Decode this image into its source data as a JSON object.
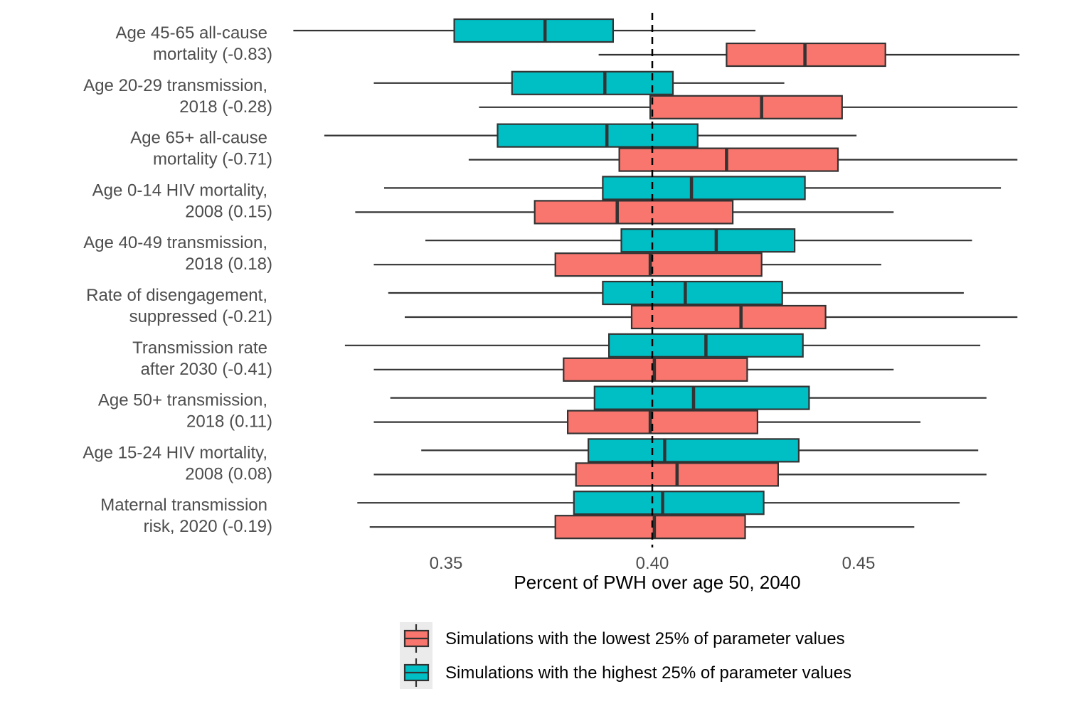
{
  "chart_data": {
    "type": "boxplot",
    "title": "",
    "xlabel": "Percent of PWH over age 50, 2040",
    "ylabel": "",
    "xlim": [
      0.3,
      0.5
    ],
    "xticks": [
      0.35,
      0.4,
      0.45
    ],
    "tick_labels": [
      "0.35",
      "0.40",
      "0.45"
    ],
    "reference_line": 0.4,
    "grid": false,
    "legend_position": "bottom",
    "series": [
      {
        "key": "low",
        "name": "Simulations with the lowest 25% of parameter values",
        "color": "#F8766D"
      },
      {
        "key": "high",
        "name": "Simulations with the highest 25% of parameter values",
        "color": "#00BFC4"
      }
    ],
    "categories": [
      {
        "label_lines": [
          "Age 45-65 all-cause",
          "mortality (-0.83)"
        ],
        "high": {
          "min": 0.313,
          "q1": 0.352,
          "median": 0.374,
          "q3": 0.3905,
          "max": 0.425
        },
        "low": {
          "min": 0.387,
          "q1": 0.418,
          "median": 0.437,
          "q3": 0.4565,
          "max": 0.489
        }
      },
      {
        "label_lines": [
          "Age 20-29 transmission,",
          "2018 (-0.28)"
        ],
        "high": {
          "min": 0.3325,
          "q1": 0.366,
          "median": 0.3885,
          "q3": 0.405,
          "max": 0.432
        },
        "low": {
          "min": 0.358,
          "q1": 0.3995,
          "median": 0.4265,
          "q3": 0.446,
          "max": 0.4885
        }
      },
      {
        "label_lines": [
          "Age 65+ all-cause",
          "mortality (-0.71)"
        ],
        "high": {
          "min": 0.3205,
          "q1": 0.3625,
          "median": 0.389,
          "q3": 0.411,
          "max": 0.4495
        },
        "low": {
          "min": 0.3555,
          "q1": 0.392,
          "median": 0.418,
          "q3": 0.445,
          "max": 0.4885
        }
      },
      {
        "label_lines": [
          "Age 0-14 HIV mortality,",
          "2008 (0.15)"
        ],
        "high": {
          "min": 0.335,
          "q1": 0.388,
          "median": 0.4095,
          "q3": 0.437,
          "max": 0.4845
        },
        "low": {
          "min": 0.328,
          "q1": 0.3715,
          "median": 0.3915,
          "q3": 0.4195,
          "max": 0.4585
        }
      },
      {
        "label_lines": [
          "Age 40-49 transmission,",
          "2018 (0.18)"
        ],
        "high": {
          "min": 0.345,
          "q1": 0.3925,
          "median": 0.4155,
          "q3": 0.4345,
          "max": 0.4775
        },
        "low": {
          "min": 0.3325,
          "q1": 0.3765,
          "median": 0.3995,
          "q3": 0.4265,
          "max": 0.4555
        }
      },
      {
        "label_lines": [
          "Rate of disengagement,",
          "suppressed (-0.21)"
        ],
        "high": {
          "min": 0.336,
          "q1": 0.388,
          "median": 0.408,
          "q3": 0.4315,
          "max": 0.4755
        },
        "low": {
          "min": 0.34,
          "q1": 0.395,
          "median": 0.4215,
          "q3": 0.442,
          "max": 0.4885
        }
      },
      {
        "label_lines": [
          "Transmission rate",
          "after 2030 (-0.41)"
        ],
        "high": {
          "min": 0.3255,
          "q1": 0.3895,
          "median": 0.413,
          "q3": 0.4365,
          "max": 0.4795
        },
        "low": {
          "min": 0.3325,
          "q1": 0.3785,
          "median": 0.4005,
          "q3": 0.423,
          "max": 0.4585
        }
      },
      {
        "label_lines": [
          "Age 50+ transmission,",
          "2018 (0.11)"
        ],
        "high": {
          "min": 0.3365,
          "q1": 0.386,
          "median": 0.41,
          "q3": 0.438,
          "max": 0.481
        },
        "low": {
          "min": 0.3325,
          "q1": 0.3795,
          "median": 0.3995,
          "q3": 0.4255,
          "max": 0.465
        }
      },
      {
        "label_lines": [
          "Age 15-24 HIV mortality,",
          "2008 (0.08)"
        ],
        "high": {
          "min": 0.344,
          "q1": 0.3845,
          "median": 0.403,
          "q3": 0.4355,
          "max": 0.479
        },
        "low": {
          "min": 0.3325,
          "q1": 0.3815,
          "median": 0.406,
          "q3": 0.4305,
          "max": 0.481
        }
      },
      {
        "label_lines": [
          "Maternal transmission",
          "risk, 2020 (-0.19)"
        ],
        "high": {
          "min": 0.3285,
          "q1": 0.381,
          "median": 0.4025,
          "q3": 0.427,
          "max": 0.4745
        },
        "low": {
          "min": 0.3315,
          "q1": 0.3765,
          "median": 0.4005,
          "q3": 0.4225,
          "max": 0.4635
        }
      }
    ]
  }
}
